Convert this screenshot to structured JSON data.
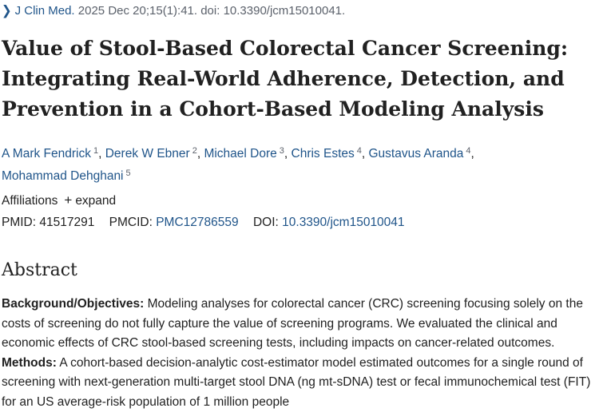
{
  "citation": {
    "journal": "J Clin Med.",
    "details": "2025 Dec 20;15(1):41. doi: 10.3390/jcm15010041.",
    "icon": "chevron-right-icon"
  },
  "title": "Value of Stool-Based Colorectal Cancer Screening: Integrating Real-World Adherence, Detection, and Prevention in a Cohort-Based Modeling Analysis",
  "authors": [
    {
      "name": "A Mark Fendrick",
      "aff": "1"
    },
    {
      "name": "Derek W Ebner",
      "aff": "2"
    },
    {
      "name": "Michael Dore",
      "aff": "3"
    },
    {
      "name": "Chris Estes",
      "aff": "4"
    },
    {
      "name": "Gustavus Aranda",
      "aff": "4"
    },
    {
      "name": "Mohammad Dehghani",
      "aff": "5"
    }
  ],
  "affiliations": {
    "label": "Affiliations",
    "expand_label": "expand",
    "icon": "plus-icon"
  },
  "ids": {
    "pmid_label": "PMID:",
    "pmid": "41517291",
    "pmcid_label": "PMCID:",
    "pmcid": "PMC12786559",
    "doi_label": "DOI:",
    "doi": "10.3390/jcm15010041"
  },
  "abstract": {
    "heading": "Abstract",
    "bg_label": "Background/Objectives:",
    "bg_text": " Modeling analyses for colorectal cancer (CRC) screening focusing solely on the costs of screening do not fully capture the value of screening programs. We evaluated the clinical and economic effects of CRC stool-based screening tests, including impacts on cancer-related outcomes.",
    "methods_label": "Methods:",
    "methods_text": " A cohort-based decision-analytic cost-estimator model estimated outcomes for a single round of screening with next-generation multi-target stool DNA (ng mt-sDNA) test or fecal immunochemical test (FIT) for an US average-risk population of 1 million people"
  }
}
